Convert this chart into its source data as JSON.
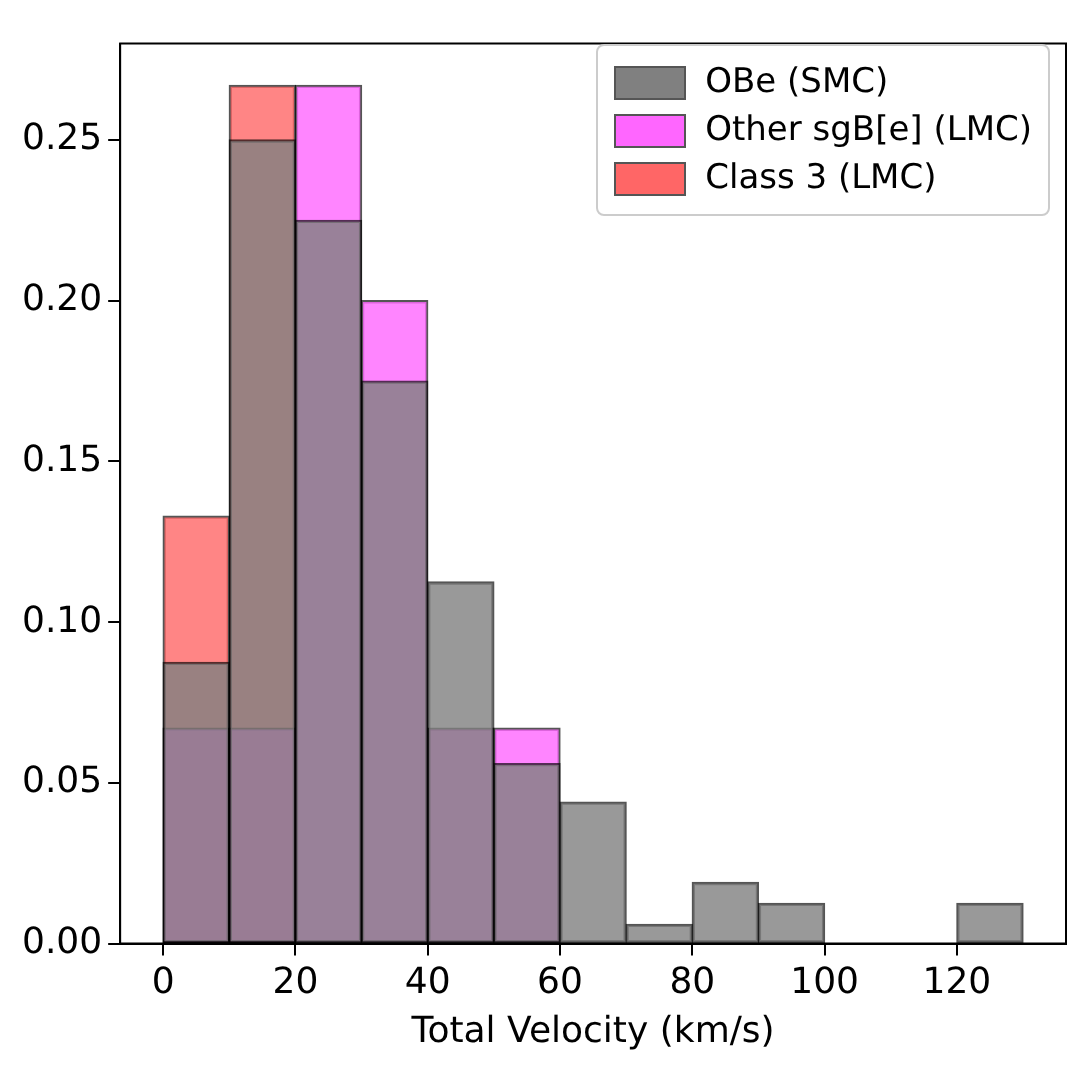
{
  "chart_data": {
    "type": "histogram",
    "xlabel": "Total Velocity (km/s)",
    "bins": [
      0,
      10,
      20,
      30,
      40,
      50,
      60,
      70,
      80,
      90,
      100,
      110,
      120,
      130
    ],
    "series": [
      {
        "name": "OBe (SMC)",
        "color": "#808080",
        "values": [
          0.0875,
          0.25,
          0.225,
          0.175,
          0.1125,
          0.056,
          0.044,
          0.006,
          0.019,
          0.0125,
          0,
          0,
          0.0125
        ]
      },
      {
        "name": "Other sgB[e] (LMC)",
        "color": "#ff66ff",
        "values": [
          0.067,
          0.067,
          0.267,
          0.2,
          0.067,
          0.067,
          0,
          0,
          0,
          0,
          0,
          0,
          0
        ]
      },
      {
        "name": "Class 3 (LMC)",
        "color": "#ff6666",
        "values": [
          0.133,
          0.267,
          0,
          0,
          0,
          0,
          0,
          0,
          0,
          0,
          0,
          0,
          0
        ]
      }
    ],
    "xlim": [
      -6.5,
      136.5
    ],
    "xticks": [
      0,
      20,
      40,
      60,
      80,
      100,
      120
    ],
    "ylim": [
      0,
      0.28
    ],
    "yticks": [
      {
        "value": 0,
        "label": "0.00"
      },
      {
        "value": 0.05,
        "label": "0.05"
      },
      {
        "value": 0.1,
        "label": "0.10"
      },
      {
        "value": 0.15,
        "label": "0.15"
      },
      {
        "value": 0.2,
        "label": "0.20"
      },
      {
        "value": 0.25,
        "label": "0.25"
      }
    ],
    "grid": false,
    "legend": "top right"
  }
}
